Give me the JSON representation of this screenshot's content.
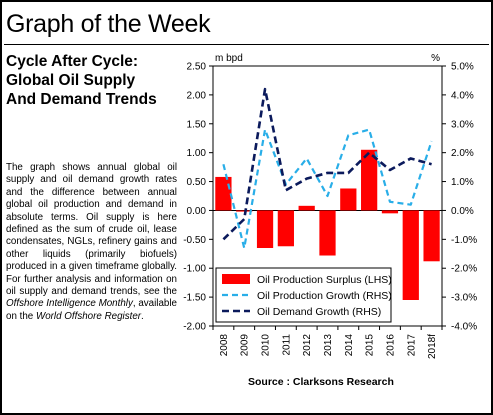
{
  "header": {
    "title": "Graph of the Week"
  },
  "subtitle": {
    "lines": [
      "Cycle After Cycle:",
      "Global Oil Supply",
      "And Demand Trends"
    ]
  },
  "description": {
    "text_before_italic1": "The graph shows annual global oil supply and oil demand growth rates and the difference between annual global oil production and demand in absolute terms. Oil supply is here defined as the sum of crude oil, lease condensates, NGLs, refinery gains and other liquids (primarily biofuels) produced in a given timeframe globally. For further analysis and information on oil supply and demand trends, see the ",
    "italic1": "Offshore Intelligence Monthly",
    "text_between": ", available on the ",
    "italic2": "World Offshore Register",
    "text_end": "."
  },
  "source": "Source : Clarksons Research",
  "colors": {
    "surplus": "#ff0000",
    "production_growth": "#29aee8",
    "demand_growth": "#0b1a5c"
  },
  "chart_data": {
    "type": "bar",
    "categories": [
      "2008",
      "2009",
      "2010",
      "2011",
      "2012",
      "2013",
      "2014",
      "2015",
      "2016",
      "2017",
      "2018f"
    ],
    "left_axis": {
      "unit_label": "m bpd",
      "ylim": [
        -2.0,
        2.5
      ],
      "ticks": [
        "2.50",
        "2.00",
        "1.50",
        "1.00",
        "0.50",
        "0.00",
        "-0.50",
        "-1.00",
        "-1.50",
        "-2.00"
      ],
      "tick_values": [
        2.5,
        2.0,
        1.5,
        1.0,
        0.5,
        0.0,
        -0.5,
        -1.0,
        -1.5,
        -2.0
      ]
    },
    "right_axis": {
      "unit_label": "%",
      "ylim": [
        -4.0,
        5.0
      ],
      "ticks": [
        "5.0%",
        "4.0%",
        "3.0%",
        "2.0%",
        "1.0%",
        "0.0%",
        "-1.0%",
        "-2.0%",
        "-3.0%",
        "-4.0%"
      ],
      "tick_values": [
        5,
        4,
        3,
        2,
        1,
        0,
        -1,
        -2,
        -3,
        -4
      ]
    },
    "series": [
      {
        "name": "Oil Production Surplus (LHS)",
        "type": "bar",
        "axis": "left",
        "values": [
          0.58,
          -0.02,
          -0.65,
          -0.62,
          0.08,
          -0.78,
          0.38,
          1.05,
          -0.05,
          -1.55,
          -0.88
        ]
      },
      {
        "name": "Oil Production Growth (RHS)",
        "type": "line",
        "axis": "right",
        "style": "dashed",
        "values": [
          1.6,
          -1.3,
          2.8,
          0.9,
          1.8,
          0.5,
          2.6,
          2.8,
          0.3,
          0.2,
          2.4
        ]
      },
      {
        "name": "Oil Demand Growth (RHS)",
        "type": "line",
        "axis": "right",
        "style": "dashed",
        "values": [
          -1.0,
          -0.3,
          4.2,
          0.7,
          1.1,
          1.3,
          1.3,
          2.0,
          1.4,
          1.8,
          1.6
        ]
      }
    ],
    "legend_position": "bottom-left",
    "grid": false
  }
}
